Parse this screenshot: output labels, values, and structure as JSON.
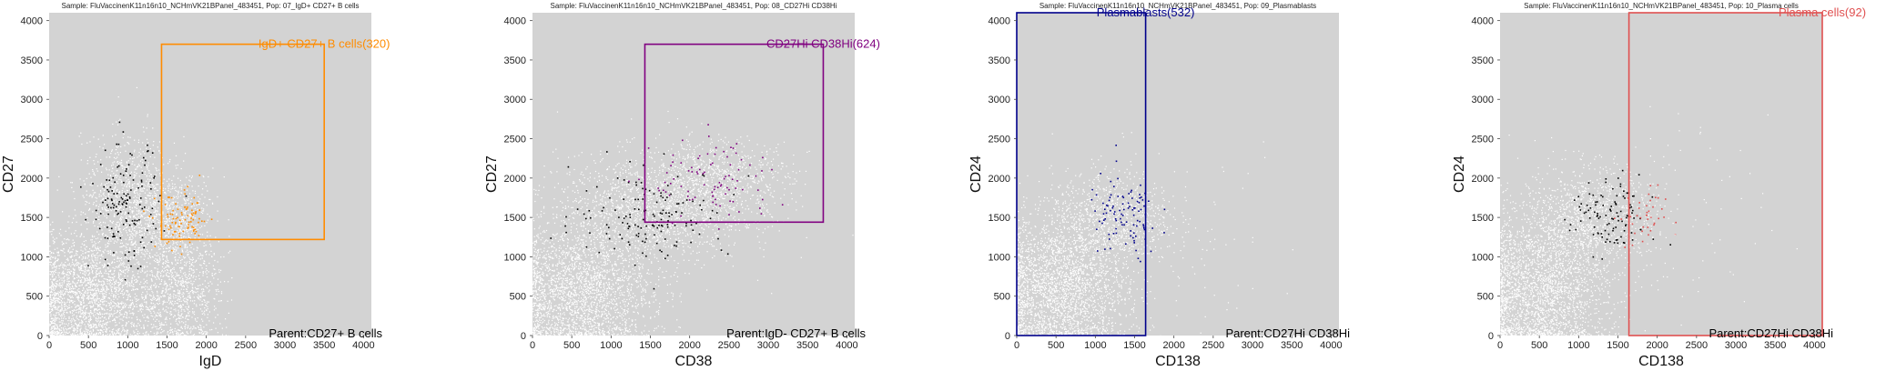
{
  "chart_data": [
    {
      "type": "scatter",
      "title": "Sample: FluVaccinenK11n16n10_NCHmVK21BPanel_483451, Pop: 07_IgD+ CD27+ B cells",
      "xlabel": "IgD",
      "ylabel": "CD27",
      "xlim": [
        0,
        4100
      ],
      "ylim": [
        0,
        4100
      ],
      "xticks": [
        0,
        500,
        1000,
        1500,
        2000,
        2500,
        3000,
        3500,
        4000
      ],
      "yticks": [
        0,
        500,
        1000,
        1500,
        2000,
        2500,
        3000,
        3500,
        4000
      ],
      "gate": {
        "label": "IgD+ CD27+ B cells(320)",
        "color": "#ff8c00",
        "x": [
          1430,
          3500
        ],
        "y": [
          1220,
          3700
        ]
      },
      "parent": "Parent:CD27+ B cells",
      "background": "#d3d3d3",
      "clusters": [
        {
          "cx": 500,
          "cy": 500,
          "sx": 420,
          "sy": 380,
          "n": 2200,
          "color": "#ffffff"
        },
        {
          "cx": 1000,
          "cy": 1650,
          "sx": 300,
          "sy": 420,
          "n": 1100,
          "color": "#ffffff"
        },
        {
          "cx": 1650,
          "cy": 550,
          "sx": 260,
          "sy": 380,
          "n": 900,
          "color": "#ffffff"
        },
        {
          "cx": 1650,
          "cy": 1500,
          "sx": 230,
          "sy": 300,
          "n": 450,
          "color": "#ffffff"
        },
        {
          "cx": 950,
          "cy": 1650,
          "sx": 220,
          "sy": 380,
          "n": 140,
          "color": "#000000"
        },
        {
          "cx": 1700,
          "cy": 1450,
          "sx": 170,
          "sy": 180,
          "n": 90,
          "color": "#ff8c00"
        }
      ]
    },
    {
      "type": "scatter",
      "title": "Sample: FluVaccinenK11n16n10_NCHmVK21BPanel_483451, Pop: 08_CD27Hi CD38Hi",
      "xlabel": "CD38",
      "ylabel": "CD27",
      "xlim": [
        0,
        4100
      ],
      "ylim": [
        0,
        4100
      ],
      "xticks": [
        0,
        500,
        1000,
        1500,
        2000,
        2500,
        3000,
        3500,
        4000
      ],
      "yticks": [
        0,
        500,
        1000,
        1500,
        2000,
        2500,
        3000,
        3500,
        4000
      ],
      "gate": {
        "label": "CD27Hi CD38Hi(624)",
        "color": "#800080",
        "x": [
          1430,
          3700
        ],
        "y": [
          1440,
          3700
        ]
      },
      "parent": "Parent:IgD- CD27+ B cells",
      "background": "#d3d3d3",
      "clusters": [
        {
          "cx": 600,
          "cy": 550,
          "sx": 450,
          "sy": 420,
          "n": 2400,
          "color": "#ffffff"
        },
        {
          "cx": 1500,
          "cy": 1600,
          "sx": 600,
          "sy": 350,
          "n": 1600,
          "color": "#ffffff"
        },
        {
          "cx": 2400,
          "cy": 2000,
          "sx": 450,
          "sy": 250,
          "n": 700,
          "color": "#ffffff"
        },
        {
          "cx": 1500,
          "cy": 1550,
          "sx": 500,
          "sy": 280,
          "n": 150,
          "color": "#000000"
        },
        {
          "cx": 2300,
          "cy": 1950,
          "sx": 400,
          "sy": 280,
          "n": 90,
          "color": "#800080"
        }
      ]
    },
    {
      "type": "scatter",
      "title": "Sample: FluVaccinenK11n16n10_NCHmVK21BPanel_483451, Pop: 09_Plasmablasts",
      "xlabel": "CD138",
      "ylabel": "CD24",
      "xlim": [
        0,
        4100
      ],
      "ylim": [
        0,
        4100
      ],
      "xticks": [
        0,
        500,
        1000,
        1500,
        2000,
        2500,
        3000,
        3500,
        4000
      ],
      "yticks": [
        0,
        500,
        1000,
        1500,
        2000,
        2500,
        3000,
        3500,
        4000
      ],
      "gate": {
        "label": "Plasmablasts(532)",
        "color": "#00008b",
        "x": [
          0,
          1640
        ],
        "y": [
          0,
          4100
        ]
      },
      "parent": "Parent:CD27Hi CD38Hi",
      "background": "#d3d3d3",
      "clusters": [
        {
          "cx": 550,
          "cy": 600,
          "sx": 420,
          "sy": 450,
          "n": 2600,
          "color": "#ffffff"
        },
        {
          "cx": 1200,
          "cy": 1500,
          "sx": 380,
          "sy": 300,
          "n": 900,
          "color": "#ffffff"
        },
        {
          "cx": 1350,
          "cy": 1500,
          "sx": 230,
          "sy": 280,
          "n": 100,
          "color": "#00008b"
        },
        {
          "cx": 2200,
          "cy": 1300,
          "sx": 700,
          "sy": 600,
          "n": 60,
          "color": "#ffffff"
        }
      ]
    },
    {
      "type": "scatter",
      "title": "Sample: FluVaccinenK11n16n10_NCHmVK21BPanel_483451, Pop: 10_Plasma cells",
      "xlabel": "CD138",
      "ylabel": "CD24",
      "xlim": [
        0,
        4100
      ],
      "ylim": [
        0,
        4100
      ],
      "xticks": [
        0,
        500,
        1000,
        1500,
        2000,
        2500,
        3000,
        3500,
        4000
      ],
      "yticks": [
        0,
        500,
        1000,
        1500,
        2000,
        2500,
        3000,
        3500,
        4000
      ],
      "gate": {
        "label": "Plasma cells(92)",
        "color": "#e05050",
        "x": [
          1640,
          4100
        ],
        "y": [
          0,
          4100
        ]
      },
      "parent": "Parent:CD27Hi CD38Hi",
      "background": "#d3d3d3",
      "clusters": [
        {
          "cx": 500,
          "cy": 550,
          "sx": 420,
          "sy": 450,
          "n": 2500,
          "color": "#ffffff"
        },
        {
          "cx": 1100,
          "cy": 1500,
          "sx": 420,
          "sy": 330,
          "n": 1100,
          "color": "#ffffff"
        },
        {
          "cx": 1400,
          "cy": 1500,
          "sx": 250,
          "sy": 250,
          "n": 110,
          "color": "#000000"
        },
        {
          "cx": 1800,
          "cy": 1500,
          "sx": 150,
          "sy": 200,
          "n": 40,
          "color": "#e05050"
        },
        {
          "cx": 2200,
          "cy": 1400,
          "sx": 600,
          "sy": 700,
          "n": 70,
          "color": "#ffffff"
        }
      ]
    }
  ]
}
